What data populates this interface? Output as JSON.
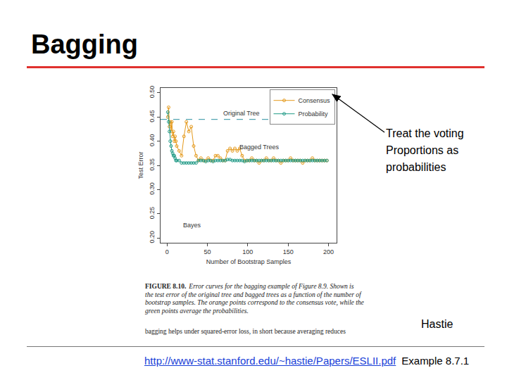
{
  "slide": {
    "title": "Bagging",
    "note": [
      "Treat the voting",
      "Proportions as",
      "probabilities"
    ],
    "caption": {
      "label": "FIGURE 8.10.",
      "lines": [
        "Error curves for the bagging example of Figure 8.9. Shown is",
        "the test error of the original tree and bagged trees as a function of the number of",
        "bootstrap samples. The orange points correspond to the consensus vote, while the",
        "green points average the probabilities."
      ]
    },
    "caption_extra": "bagging helps under squared-error loss, in short because averaging reduces",
    "credit": "Hastie",
    "footer": {
      "url": "http://www-stat.stanford.edu/~hastie/Papers/ESLII.pdf",
      "text": "Example 8.7.1"
    }
  },
  "chart_data": {
    "type": "line",
    "xlabel": "Number of Bootstrap Samples",
    "ylabel": "Test Error",
    "x": [
      1,
      2,
      3,
      4,
      5,
      6,
      7,
      8,
      9,
      10,
      11,
      12,
      15,
      18,
      21,
      24,
      27,
      30,
      33,
      36,
      39,
      42,
      45,
      48,
      51,
      54,
      57,
      60,
      63,
      66,
      69,
      72,
      75,
      78,
      81,
      84,
      87,
      90,
      93,
      96,
      99,
      102,
      105,
      108,
      111,
      114,
      117,
      120,
      123,
      126,
      129,
      132,
      135,
      138,
      141,
      144,
      147,
      150,
      153,
      156,
      159,
      162,
      165,
      168,
      171,
      174,
      177,
      180,
      183,
      186,
      189,
      192,
      195,
      198
    ],
    "series": [
      {
        "name": "Consensus",
        "color": "#e59a1c",
        "marker": "circle",
        "line_style": "solid",
        "values": [
          0.45,
          0.47,
          0.43,
          0.44,
          0.42,
          0.44,
          0.41,
          0.42,
          0.4,
          0.41,
          0.4,
          0.39,
          0.38,
          0.37,
          0.41,
          0.44,
          0.42,
          0.43,
          0.39,
          0.37,
          0.36,
          0.365,
          0.36,
          0.36,
          0.365,
          0.36,
          0.36,
          0.37,
          0.37,
          0.365,
          0.36,
          0.36,
          0.38,
          0.385,
          0.38,
          0.385,
          0.38,
          0.385,
          0.37,
          0.36,
          0.36,
          0.36,
          0.365,
          0.36,
          0.36,
          0.355,
          0.36,
          0.36,
          0.365,
          0.36,
          0.36,
          0.365,
          0.36,
          0.36,
          0.355,
          0.36,
          0.36,
          0.36,
          0.365,
          0.36,
          0.36,
          0.36,
          0.36,
          0.355,
          0.36,
          0.36,
          0.36,
          0.365,
          0.36,
          0.36,
          0.36,
          0.36,
          0.36,
          0.36
        ]
      },
      {
        "name": "Probability",
        "color": "#1f9a86",
        "marker": "circle",
        "line_style": "solid",
        "values": [
          0.46,
          0.44,
          0.42,
          0.4,
          0.39,
          0.38,
          0.375,
          0.37,
          0.37,
          0.365,
          0.36,
          0.36,
          0.36,
          0.355,
          0.355,
          0.355,
          0.355,
          0.355,
          0.355,
          0.355,
          0.36,
          0.36,
          0.36,
          0.358,
          0.36,
          0.36,
          0.358,
          0.36,
          0.36,
          0.36,
          0.36,
          0.36,
          0.362,
          0.362,
          0.36,
          0.36,
          0.36,
          0.36,
          0.36,
          0.358,
          0.36,
          0.36,
          0.36,
          0.36,
          0.36,
          0.36,
          0.36,
          0.36,
          0.36,
          0.36,
          0.36,
          0.36,
          0.36,
          0.36,
          0.36,
          0.36,
          0.36,
          0.36,
          0.36,
          0.36,
          0.36,
          0.36,
          0.36,
          0.36,
          0.36,
          0.36,
          0.36,
          0.36,
          0.36,
          0.36,
          0.36,
          0.36,
          0.36,
          0.36
        ]
      }
    ],
    "xlim": [
      -8,
      210
    ],
    "xticks": [
      0,
      50,
      100,
      150,
      200
    ],
    "ylim": [
      0.19,
      0.51
    ],
    "yticks": [
      {
        "value": 0.2,
        "label": "0.20"
      },
      0.25,
      {
        "value": 0.3,
        "label": "0.30"
      },
      0.35,
      {
        "value": 0.4,
        "label": "0.40"
      },
      0.45,
      {
        "value": 0.5,
        "label": "0.50"
      }
    ],
    "reference_lines": [
      {
        "label": "Original Tree",
        "value": 0.445,
        "line_style": "dashed"
      }
    ],
    "annotations": [
      "Bagged Trees",
      "Bayes"
    ],
    "legend": "top right",
    "grid": false
  }
}
